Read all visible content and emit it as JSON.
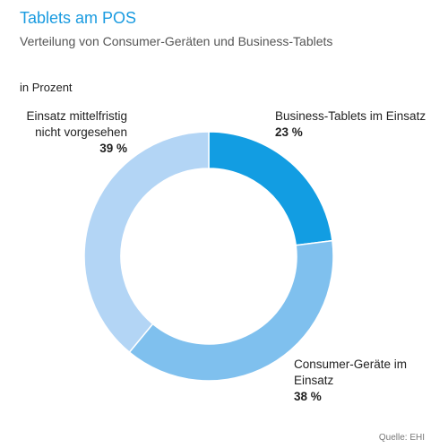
{
  "header": {
    "title": "Tablets am POS",
    "subtitle": "Verteilung von Consumer-Geräten und Business-Tablets",
    "unit_label": "in Prozent"
  },
  "source": "Quelle: EHI",
  "colors": {
    "title": "#1a9be0",
    "business": "#129de2",
    "consumer": "#7fc0ee",
    "not_planned": "#b3d5f5"
  },
  "chart_data": {
    "type": "pie",
    "variant": "donut",
    "unit": "%",
    "slices": [
      {
        "label": "Business-Tablets im Einsatz",
        "value": 23,
        "display": "23 %",
        "color": "#129de2"
      },
      {
        "label": "Consumer-Geräte im Einsatz",
        "value": 38,
        "display": "38 %",
        "color": "#7fc0ee"
      },
      {
        "label": "Einsatz mittelfristig nicht vorgesehen",
        "value": 39,
        "display": "39 %",
        "color": "#b3d5f5"
      }
    ]
  }
}
